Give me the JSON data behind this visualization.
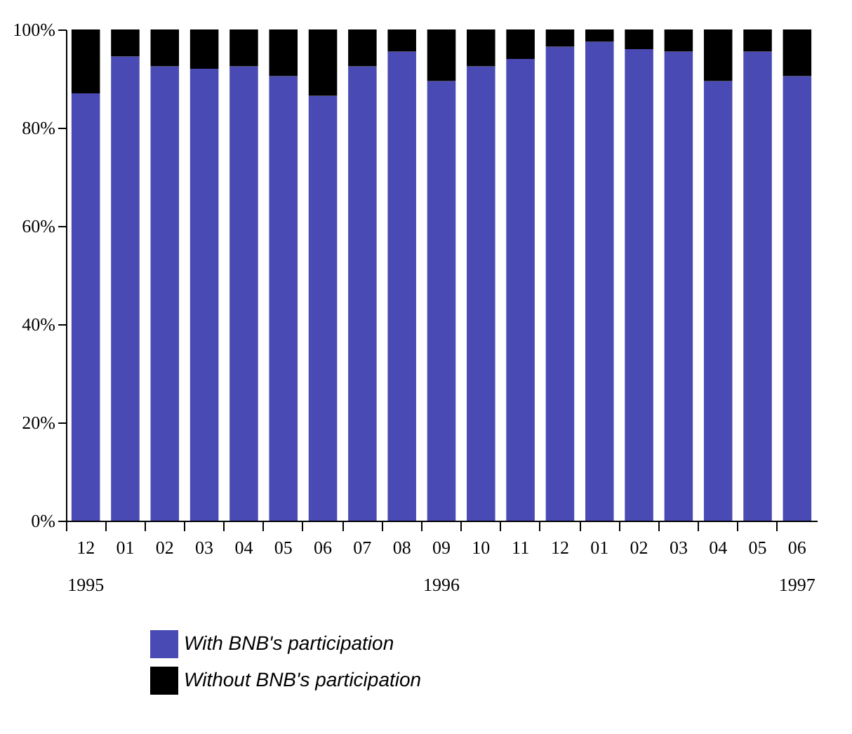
{
  "chart_data": {
    "type": "bar",
    "stacked": true,
    "categories": [
      "12",
      "01",
      "02",
      "03",
      "04",
      "05",
      "06",
      "07",
      "08",
      "09",
      "10",
      "11",
      "12",
      "01",
      "02",
      "03",
      "04",
      "05",
      "06"
    ],
    "series": [
      {
        "name": "With BNB's participation",
        "color": "#4a4ab4",
        "values": [
          87,
          94.5,
          92.5,
          92,
          92.5,
          90.5,
          86.5,
          92.5,
          95.5,
          89.5,
          92.5,
          94,
          96.5,
          97.5,
          96,
          95.5,
          89.5,
          95.5,
          90.5
        ]
      },
      {
        "name": "Without BNB's participation",
        "color": "#000000",
        "values": [
          13,
          5.5,
          7.5,
          8,
          7.5,
          9.5,
          13.5,
          7.5,
          4.5,
          10.5,
          7.5,
          6,
          3.5,
          2.5,
          4,
          4.5,
          10.5,
          4.5,
          9.5
        ]
      }
    ],
    "ylim": [
      0,
      100
    ],
    "yticks": [
      {
        "value": 0,
        "label": "0%"
      },
      {
        "value": 20,
        "label": "20%"
      },
      {
        "value": 40,
        "label": "40%"
      },
      {
        "value": 60,
        "label": "60%"
      },
      {
        "value": 80,
        "label": "80%"
      },
      {
        "value": 100,
        "label": "100%"
      }
    ],
    "annotations": [
      "1995",
      "1996",
      "1997"
    ],
    "legend": "bottom",
    "grid": false
  }
}
